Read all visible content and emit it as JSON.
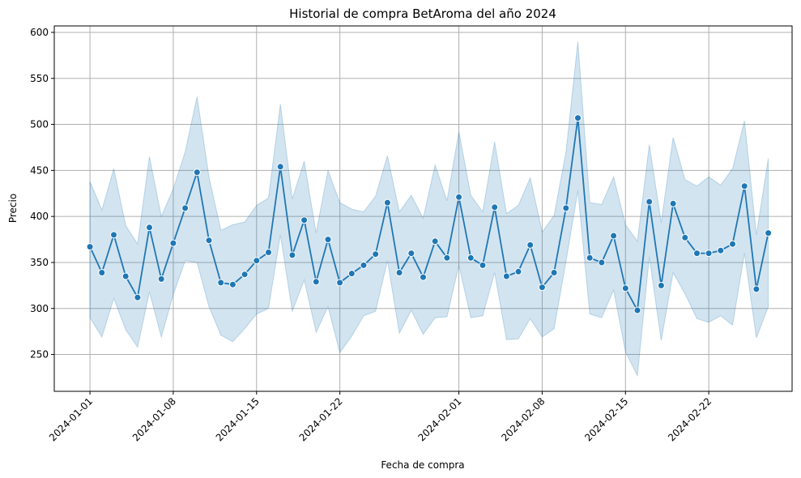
{
  "chart_data": {
    "type": "line",
    "title": "Historial de compra BetAroma del año 2024",
    "xlabel": "Fecha de compra",
    "ylabel": "Precio",
    "ylim": [
      210,
      607
    ],
    "xlim": [
      "2023-12-29",
      "2024-02-29"
    ],
    "yticks": [
      250,
      300,
      350,
      400,
      450,
      500,
      550,
      600
    ],
    "xticks": [
      "2024-01-01",
      "2024-01-08",
      "2024-01-15",
      "2024-01-22",
      "2024-02-01",
      "2024-02-08",
      "2024-02-15",
      "2024-02-22"
    ],
    "grid": true,
    "colors": {
      "line": "#1f77b4",
      "band": "#1f77b4",
      "grid": "#b0b0b0"
    },
    "series": [
      {
        "x": [
          "2024-01-01",
          "2024-01-02",
          "2024-01-03",
          "2024-01-04",
          "2024-01-05",
          "2024-01-06",
          "2024-01-07",
          "2024-01-08",
          "2024-01-09",
          "2024-01-10",
          "2024-01-11",
          "2024-01-12",
          "2024-01-13",
          "2024-01-14",
          "2024-01-15",
          "2024-01-16",
          "2024-01-17",
          "2024-01-18",
          "2024-01-19",
          "2024-01-20",
          "2024-01-21",
          "2024-01-22",
          "2024-01-23",
          "2024-01-24",
          "2024-01-25",
          "2024-01-26",
          "2024-01-27",
          "2024-01-28",
          "2024-01-29",
          "2024-01-30",
          "2024-01-31",
          "2024-02-01",
          "2024-02-02",
          "2024-02-03",
          "2024-02-04",
          "2024-02-05",
          "2024-02-06",
          "2024-02-07",
          "2024-02-08",
          "2024-02-09",
          "2024-02-10",
          "2024-02-11",
          "2024-02-12",
          "2024-02-13",
          "2024-02-14",
          "2024-02-15",
          "2024-02-16",
          "2024-02-17",
          "2024-02-18",
          "2024-02-19",
          "2024-02-20",
          "2024-02-21",
          "2024-02-22",
          "2024-02-23",
          "2024-02-24",
          "2024-02-25",
          "2024-02-26",
          "2024-02-27"
        ],
        "y": [
          367,
          339,
          380,
          335,
          312,
          388,
          332,
          371,
          409,
          448,
          374,
          328,
          326,
          337,
          352,
          361,
          454,
          358,
          396,
          329,
          375,
          328,
          338,
          347,
          359,
          415,
          339,
          360,
          334,
          373,
          355,
          421,
          355,
          347,
          410,
          335,
          340,
          369,
          323,
          339,
          409,
          507,
          355,
          350,
          379,
          322,
          298,
          416,
          325,
          414,
          377,
          360,
          360,
          363,
          370,
          433,
          321,
          382
        ],
        "ci_upper": [
          438,
          407,
          452,
          390,
          370,
          465,
          400,
          430,
          470,
          530,
          443,
          385,
          391,
          394,
          412,
          420,
          522,
          419,
          460,
          382,
          450,
          415,
          408,
          405,
          422,
          466,
          405,
          423,
          398,
          456,
          417,
          492,
          423,
          405,
          481,
          403,
          412,
          442,
          383,
          401,
          470,
          590,
          415,
          413,
          443,
          391,
          373,
          478,
          393,
          486,
          440,
          433,
          443,
          434,
          452,
          504,
          380,
          463
        ],
        "ci_lower": [
          290,
          269,
          311,
          277,
          258,
          318,
          269,
          315,
          352,
          350,
          302,
          271,
          264,
          278,
          294,
          300,
          380,
          297,
          331,
          274,
          302,
          252,
          270,
          292,
          297,
          352,
          273,
          298,
          272,
          290,
          291,
          347,
          290,
          292,
          339,
          266,
          267,
          289,
          269,
          278,
          351,
          428,
          294,
          290,
          320,
          253,
          227,
          356,
          265,
          339,
          316,
          289,
          285,
          292,
          282,
          360,
          268,
          302
        ]
      }
    ]
  }
}
